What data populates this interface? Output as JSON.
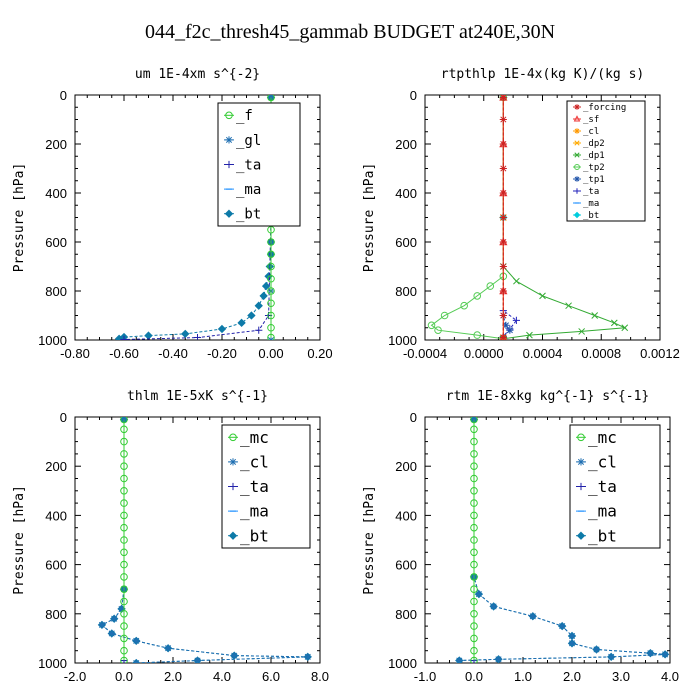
{
  "title": "044_f2c_thresh45_gammab  BUDGET at240E,30N",
  "chart_data": [
    {
      "type": "line",
      "title": "um   1E-4xm s^{-2}",
      "xlabel": "",
      "ylabel": "Pressure [hPa]",
      "xlim": [
        -0.8,
        0.2
      ],
      "ylim": [
        1000,
        0
      ],
      "x_ticks": [
        "-0.80",
        "-0.60",
        "-0.40",
        "-0.20",
        "0.00",
        "0.20"
      ],
      "y_ticks": [
        "0",
        "200",
        "400",
        "600",
        "800",
        "1000"
      ],
      "legend_position": "top-right",
      "series": [
        {
          "name": "_f",
          "color": "#33cc33",
          "marker": "circle",
          "points": [
            [
              0,
              10
            ],
            [
              0,
              50
            ],
            [
              0,
              100
            ],
            [
              0,
              150
            ],
            [
              0,
              200
            ],
            [
              0,
              250
            ],
            [
              0,
              300
            ],
            [
              0,
              350
            ],
            [
              0,
              400
            ],
            [
              0,
              450
            ],
            [
              0,
              500
            ],
            [
              0,
              550
            ],
            [
              0,
              600
            ],
            [
              0,
              650
            ],
            [
              0,
              700
            ],
            [
              0,
              750
            ],
            [
              0,
              800
            ],
            [
              0,
              850
            ],
            [
              0,
              900
            ],
            [
              0,
              950
            ],
            [
              0,
              990
            ]
          ]
        },
        {
          "name": "_gl",
          "color": "#1f6fb2",
          "marker": "star",
          "points": [
            [
              0,
              10
            ],
            [
              0,
              200
            ],
            [
              0,
              400
            ],
            [
              0,
              600
            ],
            [
              0,
              800
            ],
            [
              0,
              1000
            ]
          ]
        },
        {
          "name": "_ta",
          "color": "#2222aa",
          "marker": "plus",
          "points": [
            [
              0,
              10
            ],
            [
              0,
              500
            ],
            [
              -0.01,
              900
            ],
            [
              -0.05,
              960
            ],
            [
              -0.3,
              990
            ],
            [
              -0.6,
              998
            ]
          ]
        },
        {
          "name": "_ma",
          "color": "#1e90ff",
          "marker": "dash",
          "points": [
            [
              0,
              10
            ],
            [
              0,
              1000
            ]
          ]
        },
        {
          "name": "_bt",
          "color": "#0d7aa8",
          "marker": "diamond",
          "points": [
            [
              0,
              10
            ],
            [
              0,
              100
            ],
            [
              0,
              200
            ],
            [
              0,
              300
            ],
            [
              0,
              400
            ],
            [
              0,
              500
            ],
            [
              0,
              600
            ],
            [
              0,
              650
            ],
            [
              -0.005,
              700
            ],
            [
              -0.01,
              740
            ],
            [
              -0.02,
              780
            ],
            [
              -0.03,
              820
            ],
            [
              -0.05,
              860
            ],
            [
              -0.08,
              900
            ],
            [
              -0.12,
              930
            ],
            [
              -0.2,
              955
            ],
            [
              -0.35,
              975
            ],
            [
              -0.5,
              982
            ],
            [
              -0.6,
              988
            ],
            [
              -0.62,
              995
            ]
          ]
        }
      ]
    },
    {
      "type": "line",
      "title": "rtpthlp   1E-4x(kg K)/(kg s)",
      "xlabel": "",
      "ylabel": "Pressure [hPa]",
      "xlim": [
        -0.0006,
        0.0012
      ],
      "ylim": [
        1000,
        0
      ],
      "x_ticks": [
        "-0.0004",
        "0.0000",
        "0.0004",
        "0.0008",
        "0.0012"
      ],
      "y_ticks": [
        "0",
        "200",
        "400",
        "600",
        "800",
        "1000"
      ],
      "legend_position": "top-right",
      "series": [
        {
          "name": "_forcing",
          "color": "#cc2222",
          "marker": "star",
          "points": [
            [
              0,
              10
            ],
            [
              0,
              100
            ],
            [
              0,
              200
            ],
            [
              0,
              300
            ],
            [
              0,
              400
            ],
            [
              0,
              500
            ],
            [
              0,
              600
            ],
            [
              0,
              700
            ],
            [
              0,
              800
            ],
            [
              0,
              900
            ],
            [
              0,
              990
            ]
          ]
        },
        {
          "name": "_sf",
          "color": "#ee3333",
          "marker": "triangle",
          "points": [
            [
              0,
              10
            ],
            [
              0,
              200
            ],
            [
              0,
              400
            ],
            [
              0,
              600
            ],
            [
              0,
              800
            ],
            [
              0,
              990
            ]
          ]
        },
        {
          "name": "_cl",
          "color": "#ff9900",
          "marker": "star",
          "points": [
            [
              0,
              10
            ],
            [
              0,
              500
            ],
            [
              0,
              990
            ]
          ]
        },
        {
          "name": "_dp2",
          "color": "#ffaa00",
          "marker": "x",
          "points": [
            [
              0,
              10
            ],
            [
              0,
              500
            ],
            [
              0,
              990
            ]
          ]
        },
        {
          "name": "_dp1",
          "color": "#33aa33",
          "marker": "x",
          "points": [
            [
              0,
              10
            ],
            [
              0,
              700
            ],
            [
              0.0001,
              760
            ],
            [
              0.0003,
              820
            ],
            [
              0.0005,
              860
            ],
            [
              0.0007,
              900
            ],
            [
              0.00085,
              930
            ],
            [
              0.00093,
              950
            ],
            [
              0.0006,
              965
            ],
            [
              0.0002,
              980
            ],
            [
              0,
              995
            ]
          ]
        },
        {
          "name": "_tp2",
          "color": "#55cc55",
          "marker": "circle",
          "points": [
            [
              0,
              10
            ],
            [
              0,
              740
            ],
            [
              -0.0001,
              780
            ],
            [
              -0.0002,
              820
            ],
            [
              -0.0003,
              860
            ],
            [
              -0.00045,
              900
            ],
            [
              -0.00055,
              940
            ],
            [
              -0.0005,
              960
            ],
            [
              -0.0002,
              980
            ],
            [
              0,
              995
            ]
          ]
        },
        {
          "name": "_tp1",
          "color": "#2255aa",
          "marker": "star",
          "points": [
            [
              0,
              10
            ],
            [
              0,
              900
            ],
            [
              2e-05,
              940
            ],
            [
              5e-05,
              960
            ],
            [
              0,
              990
            ]
          ]
        },
        {
          "name": "_ta",
          "color": "#2222bb",
          "marker": "plus",
          "points": [
            [
              0,
              10
            ],
            [
              0,
              880
            ],
            [
              0.0001,
              920
            ],
            [
              5e-05,
              955
            ],
            [
              0,
              985
            ]
          ]
        },
        {
          "name": "_ma",
          "color": "#1e90ff",
          "marker": "dash",
          "points": [
            [
              0,
              10
            ],
            [
              0,
              990
            ]
          ]
        },
        {
          "name": "_bt",
          "color": "#00ccdd",
          "marker": "diamond",
          "points": [
            [
              0,
              10
            ],
            [
              0,
              500
            ],
            [
              0,
              990
            ]
          ]
        }
      ]
    },
    {
      "type": "line",
      "title": "thlm   1E-5xK s^{-1}",
      "xlabel": "",
      "ylabel": "Pressure [hPa]",
      "xlim": [
        -2.0,
        8.0
      ],
      "ylim": [
        1000,
        0
      ],
      "x_ticks": [
        "-2.0",
        "0.0",
        "2.0",
        "4.0",
        "6.0",
        "8.0"
      ],
      "y_ticks": [
        "0",
        "200",
        "400",
        "600",
        "800",
        "1000"
      ],
      "legend_position": "top-right",
      "series": [
        {
          "name": "_mc",
          "color": "#33cc33",
          "marker": "circle",
          "points": [
            [
              0,
              10
            ],
            [
              0,
              50
            ],
            [
              0,
              100
            ],
            [
              0,
              150
            ],
            [
              0,
              200
            ],
            [
              0,
              250
            ],
            [
              0,
              300
            ],
            [
              0,
              350
            ],
            [
              0,
              400
            ],
            [
              0,
              450
            ],
            [
              0,
              500
            ],
            [
              0,
              550
            ],
            [
              0,
              600
            ],
            [
              0,
              650
            ],
            [
              0,
              700
            ],
            [
              0,
              750
            ],
            [
              0,
              800
            ],
            [
              0,
              850
            ],
            [
              0,
              900
            ],
            [
              0,
              950
            ],
            [
              0,
              990
            ]
          ]
        },
        {
          "name": "_cl",
          "color": "#1f6fb2",
          "marker": "star",
          "points": [
            [
              0,
              10
            ],
            [
              0,
              700
            ],
            [
              -0.1,
              780
            ],
            [
              -0.4,
              820
            ],
            [
              -0.9,
              845
            ],
            [
              -0.5,
              880
            ],
            [
              0.5,
              910
            ],
            [
              1.8,
              940
            ],
            [
              4.5,
              970
            ],
            [
              7.5,
              975
            ],
            [
              3,
              990
            ],
            [
              0.5,
              1000
            ]
          ]
        },
        {
          "name": "_ta",
          "color": "#2222aa",
          "marker": "plus",
          "points": [
            [
              0,
              10
            ],
            [
              0,
              990
            ]
          ]
        },
        {
          "name": "_ma",
          "color": "#1e90ff",
          "marker": "dash",
          "points": [
            [
              0,
              10
            ],
            [
              0,
              990
            ]
          ]
        },
        {
          "name": "_bt",
          "color": "#0d7aa8",
          "marker": "diamond",
          "points": [
            [
              0,
              10
            ],
            [
              0,
              700
            ],
            [
              -0.1,
              780
            ],
            [
              -0.4,
              820
            ],
            [
              -0.9,
              845
            ],
            [
              -0.5,
              880
            ],
            [
              0.5,
              910
            ],
            [
              1.8,
              940
            ],
            [
              4.5,
              970
            ],
            [
              7.5,
              975
            ],
            [
              3,
              990
            ],
            [
              0.5,
              1000
            ]
          ]
        }
      ]
    },
    {
      "type": "line",
      "title": "rtm   1E-8xkg kg^{-1} s^{-1}",
      "xlabel": "",
      "ylabel": "Pressure [hPa]",
      "xlim": [
        -1.0,
        4.0
      ],
      "ylim": [
        1000,
        0
      ],
      "x_ticks": [
        "-1.0",
        "0.0",
        "1.0",
        "2.0",
        "3.0",
        "4.0"
      ],
      "y_ticks": [
        "0",
        "200",
        "400",
        "600",
        "800",
        "1000"
      ],
      "legend_position": "top-right",
      "series": [
        {
          "name": "_mc",
          "color": "#33cc33",
          "marker": "circle",
          "points": [
            [
              0,
              10
            ],
            [
              0,
              50
            ],
            [
              0,
              100
            ],
            [
              0,
              150
            ],
            [
              0,
              200
            ],
            [
              0,
              250
            ],
            [
              0,
              300
            ],
            [
              0,
              350
            ],
            [
              0,
              400
            ],
            [
              0,
              450
            ],
            [
              0,
              500
            ],
            [
              0,
              550
            ],
            [
              0,
              600
            ],
            [
              0,
              650
            ],
            [
              0,
              700
            ],
            [
              0,
              750
            ],
            [
              0,
              800
            ],
            [
              0,
              850
            ],
            [
              0,
              900
            ],
            [
              0,
              950
            ],
            [
              0,
              990
            ]
          ]
        },
        {
          "name": "_cl",
          "color": "#1f6fb2",
          "marker": "star",
          "points": [
            [
              0,
              10
            ],
            [
              0,
              650
            ],
            [
              0.1,
              720
            ],
            [
              0.4,
              770
            ],
            [
              1.2,
              810
            ],
            [
              1.8,
              850
            ],
            [
              2.0,
              890
            ],
            [
              2.0,
              920
            ],
            [
              2.5,
              945
            ],
            [
              3.6,
              960
            ],
            [
              3.9,
              965
            ],
            [
              2.8,
              975
            ],
            [
              0.5,
              985
            ],
            [
              -0.3,
              990
            ]
          ]
        },
        {
          "name": "_ta",
          "color": "#2222aa",
          "marker": "plus",
          "points": [
            [
              0,
              10
            ],
            [
              0,
              990
            ]
          ]
        },
        {
          "name": "_ma",
          "color": "#1e90ff",
          "marker": "dash",
          "points": [
            [
              0,
              10
            ],
            [
              0,
              990
            ]
          ]
        },
        {
          "name": "_bt",
          "color": "#0d7aa8",
          "marker": "diamond",
          "points": [
            [
              0,
              10
            ],
            [
              0,
              650
            ],
            [
              0.1,
              720
            ],
            [
              0.4,
              770
            ],
            [
              1.2,
              810
            ],
            [
              1.8,
              850
            ],
            [
              2.0,
              890
            ],
            [
              2.0,
              920
            ],
            [
              2.5,
              945
            ],
            [
              3.6,
              960
            ],
            [
              3.9,
              965
            ],
            [
              2.8,
              975
            ],
            [
              0.5,
              985
            ],
            [
              -0.3,
              990
            ]
          ]
        }
      ]
    }
  ]
}
